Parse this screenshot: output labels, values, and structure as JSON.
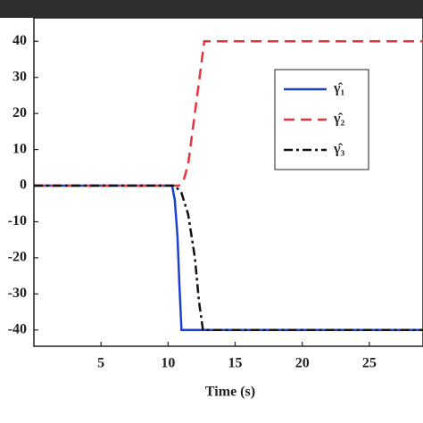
{
  "chart_data": {
    "type": "line",
    "xlabel": "Time (s)",
    "xlim": [
      0,
      29
    ],
    "xticks": [
      5,
      10,
      15,
      20,
      25
    ],
    "ylim": [
      -44.5,
      46.5
    ],
    "yticks": [
      40,
      30,
      20,
      10,
      0,
      -10,
      -20,
      -30,
      -40
    ],
    "legend": "upper-right",
    "series": [
      {
        "name": "γ̂₁",
        "color": "#1f3fd0",
        "dash": "solid",
        "x": [
          0,
          10.3,
          10.5,
          10.7,
          10.85,
          11,
          29
        ],
        "values": [
          0,
          0,
          -4,
          -14,
          -28,
          -40,
          -40
        ]
      },
      {
        "name": "γ̂₂",
        "color": "#e8323c",
        "dash": "dashed",
        "x": [
          0,
          10.8,
          11.2,
          11.5,
          12.7,
          29
        ],
        "values": [
          0,
          0,
          2,
          6,
          40,
          40
        ]
      },
      {
        "name": "γ̂₃",
        "color": "#111111",
        "dash": "dashdot",
        "x": [
          0,
          10.5,
          11,
          11.5,
          12,
          12.3,
          12.6,
          29
        ],
        "values": [
          0,
          0,
          -2,
          -8,
          -20,
          -32,
          -40,
          -40
        ]
      }
    ]
  }
}
